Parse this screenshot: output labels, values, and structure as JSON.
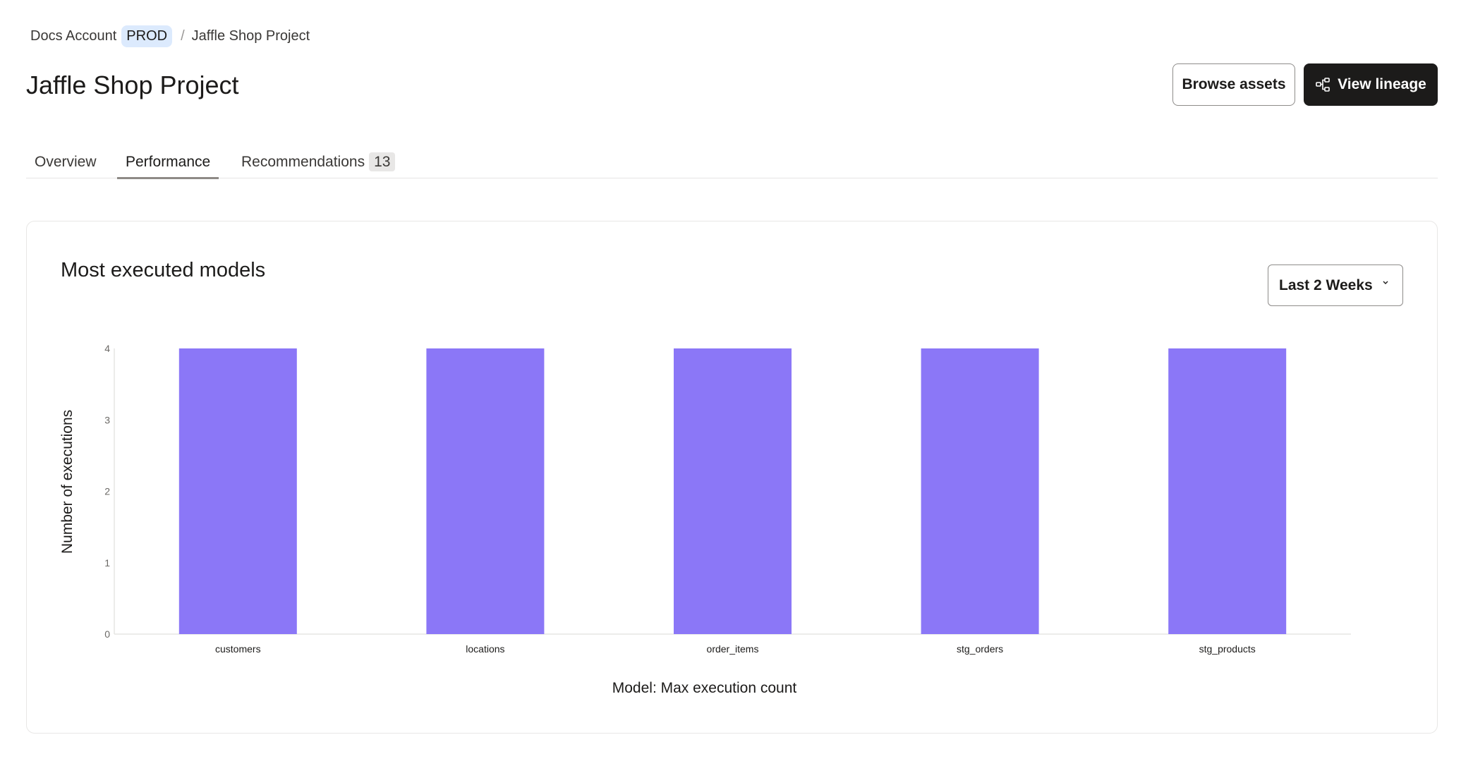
{
  "breadcrumb": {
    "account": "Docs Account",
    "env": "PROD",
    "separator": "/",
    "project": "Jaffle Shop Project"
  },
  "header": {
    "title": "Jaffle Shop Project",
    "browse_label": "Browse assets",
    "lineage_label": "View lineage",
    "lineage_icon": "lineage-icon"
  },
  "tabs": [
    {
      "label": "Overview"
    },
    {
      "label": "Performance",
      "active": true
    },
    {
      "label": "Recommendations",
      "count": "13"
    }
  ],
  "card": {
    "title": "Most executed models",
    "range_select": "Last 2 Weeks"
  },
  "colors": {
    "bar": "#8b77f7",
    "primary_button": "#1c1b1a",
    "env_badge": "#dceafd"
  },
  "chart_data": {
    "type": "bar",
    "categories": [
      "customers",
      "locations",
      "order_items",
      "stg_orders",
      "stg_products"
    ],
    "values": [
      4,
      4,
      4,
      4,
      4
    ],
    "xlabel": "Model: Max execution count",
    "ylabel": "Number of executions",
    "ylim": [
      0,
      4
    ],
    "yticks": [
      "0",
      "1",
      "2",
      "3",
      "4"
    ],
    "grid": false
  }
}
